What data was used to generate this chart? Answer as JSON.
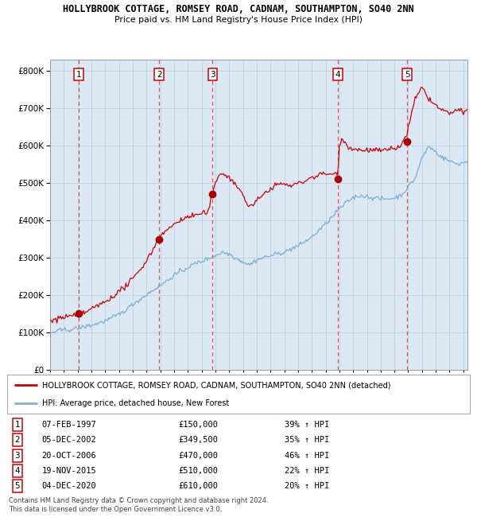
{
  "title1": "HOLLYBROOK COTTAGE, ROMSEY ROAD, CADNAM, SOUTHAMPTON, SO40 2NN",
  "title2": "Price paid vs. HM Land Registry's House Price Index (HPI)",
  "plot_bg_color": "#dce9f5",
  "red_line_color": "#cc0000",
  "blue_line_color": "#7bafd4",
  "sale_marker_color": "#aa0000",
  "dashed_line_color": "#ee3333",
  "purchases": [
    {
      "num": 1,
      "date_x": 1997.1,
      "price": 150000,
      "label": "07-FEB-1997",
      "pct": "39%"
    },
    {
      "num": 2,
      "date_x": 2002.92,
      "price": 349500,
      "label": "05-DEC-2002",
      "pct": "35%"
    },
    {
      "num": 3,
      "date_x": 2006.8,
      "price": 470000,
      "label": "20-OCT-2006",
      "pct": "46%"
    },
    {
      "num": 4,
      "date_x": 2015.88,
      "price": 510000,
      "label": "19-NOV-2015",
      "pct": "22%"
    },
    {
      "num": 5,
      "date_x": 2020.92,
      "price": 610000,
      "label": "04-DEC-2020",
      "pct": "20%"
    }
  ],
  "ylim": [
    0,
    830000
  ],
  "xlim_start": 1995.0,
  "xlim_end": 2025.3,
  "yticks": [
    0,
    100000,
    200000,
    300000,
    400000,
    500000,
    600000,
    700000,
    800000
  ],
  "ytick_labels": [
    "£0",
    "£100K",
    "£200K",
    "£300K",
    "£400K",
    "£500K",
    "£600K",
    "£700K",
    "£800K"
  ],
  "xticks": [
    1995,
    1996,
    1997,
    1998,
    1999,
    2000,
    2001,
    2002,
    2003,
    2004,
    2005,
    2006,
    2007,
    2008,
    2009,
    2010,
    2011,
    2012,
    2013,
    2014,
    2015,
    2016,
    2017,
    2018,
    2019,
    2020,
    2021,
    2022,
    2023,
    2024,
    2025
  ],
  "legend_red": "HOLLYBROOK COTTAGE, ROMSEY ROAD, CADNAM, SOUTHAMPTON, SO40 2NN (detached)",
  "legend_blue": "HPI: Average price, detached house, New Forest",
  "footer1": "Contains HM Land Registry data © Crown copyright and database right 2024.",
  "footer2": "This data is licensed under the Open Government Licence v3.0."
}
